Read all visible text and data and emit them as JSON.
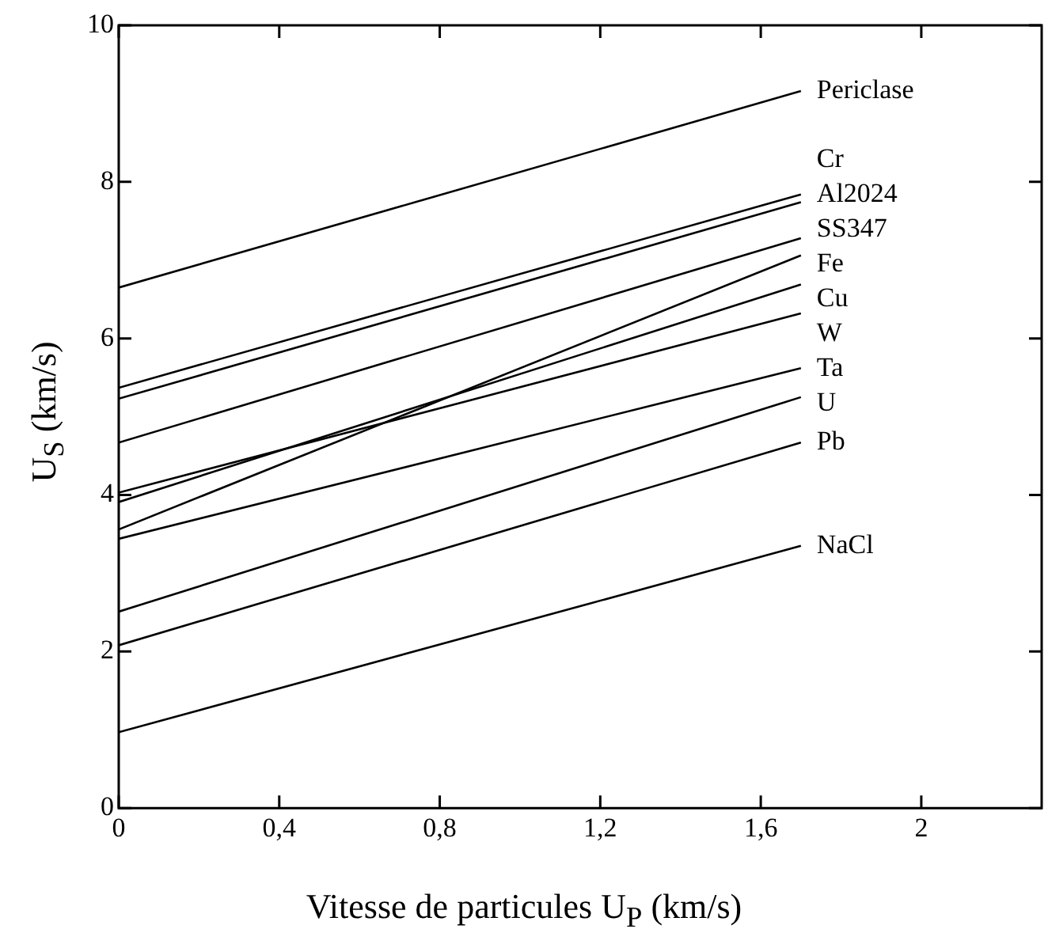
{
  "chart_data": {
    "type": "line",
    "xlabel": "Vitesse de particules U$_{P}$ (km/s)",
    "ylabel": "U$_{S}$ (km/s)",
    "xlim": [
      0,
      2.3
    ],
    "ylim": [
      0,
      10
    ],
    "xticks": [
      0,
      {
        "value": 0.4,
        "label": "0,4"
      },
      {
        "value": 0.8,
        "label": "0,8"
      },
      {
        "value": 1.2,
        "label": "1,2"
      },
      {
        "value": 1.6,
        "label": "1,6"
      },
      2
    ],
    "yticks": [
      0,
      2,
      4,
      6,
      8,
      10
    ],
    "grid": false,
    "legend": false,
    "marker": "none",
    "line_style": "solid",
    "x": [
      0,
      1.7
    ],
    "series": [
      {
        "name": "Periclase",
        "color": "#000000",
        "values": [
          6.65,
          9.16
        ]
      },
      {
        "name": "Cr",
        "color": "#000000",
        "values": [
          5.37,
          7.84
        ]
      },
      {
        "name": "Al2024",
        "color": "#000000",
        "values": [
          5.23,
          7.74
        ]
      },
      {
        "name": "SS347",
        "color": "#000000",
        "values": [
          4.67,
          7.28
        ]
      },
      {
        "name": "Fe",
        "color": "#000000",
        "values": [
          3.56,
          7.06
        ]
      },
      {
        "name": "Cu",
        "color": "#000000",
        "values": [
          3.91,
          6.69
        ]
      },
      {
        "name": "W",
        "color": "#000000",
        "values": [
          4.03,
          6.32
        ]
      },
      {
        "name": "Ta",
        "color": "#000000",
        "values": [
          3.44,
          5.62
        ]
      },
      {
        "name": "U",
        "color": "#000000",
        "values": [
          2.51,
          5.25
        ]
      },
      {
        "name": "Pb",
        "color": "#000000",
        "values": [
          2.08,
          4.67
        ]
      },
      {
        "name": "NaCl",
        "color": "#000000",
        "values": [
          0.97,
          3.35
        ]
      }
    ]
  }
}
